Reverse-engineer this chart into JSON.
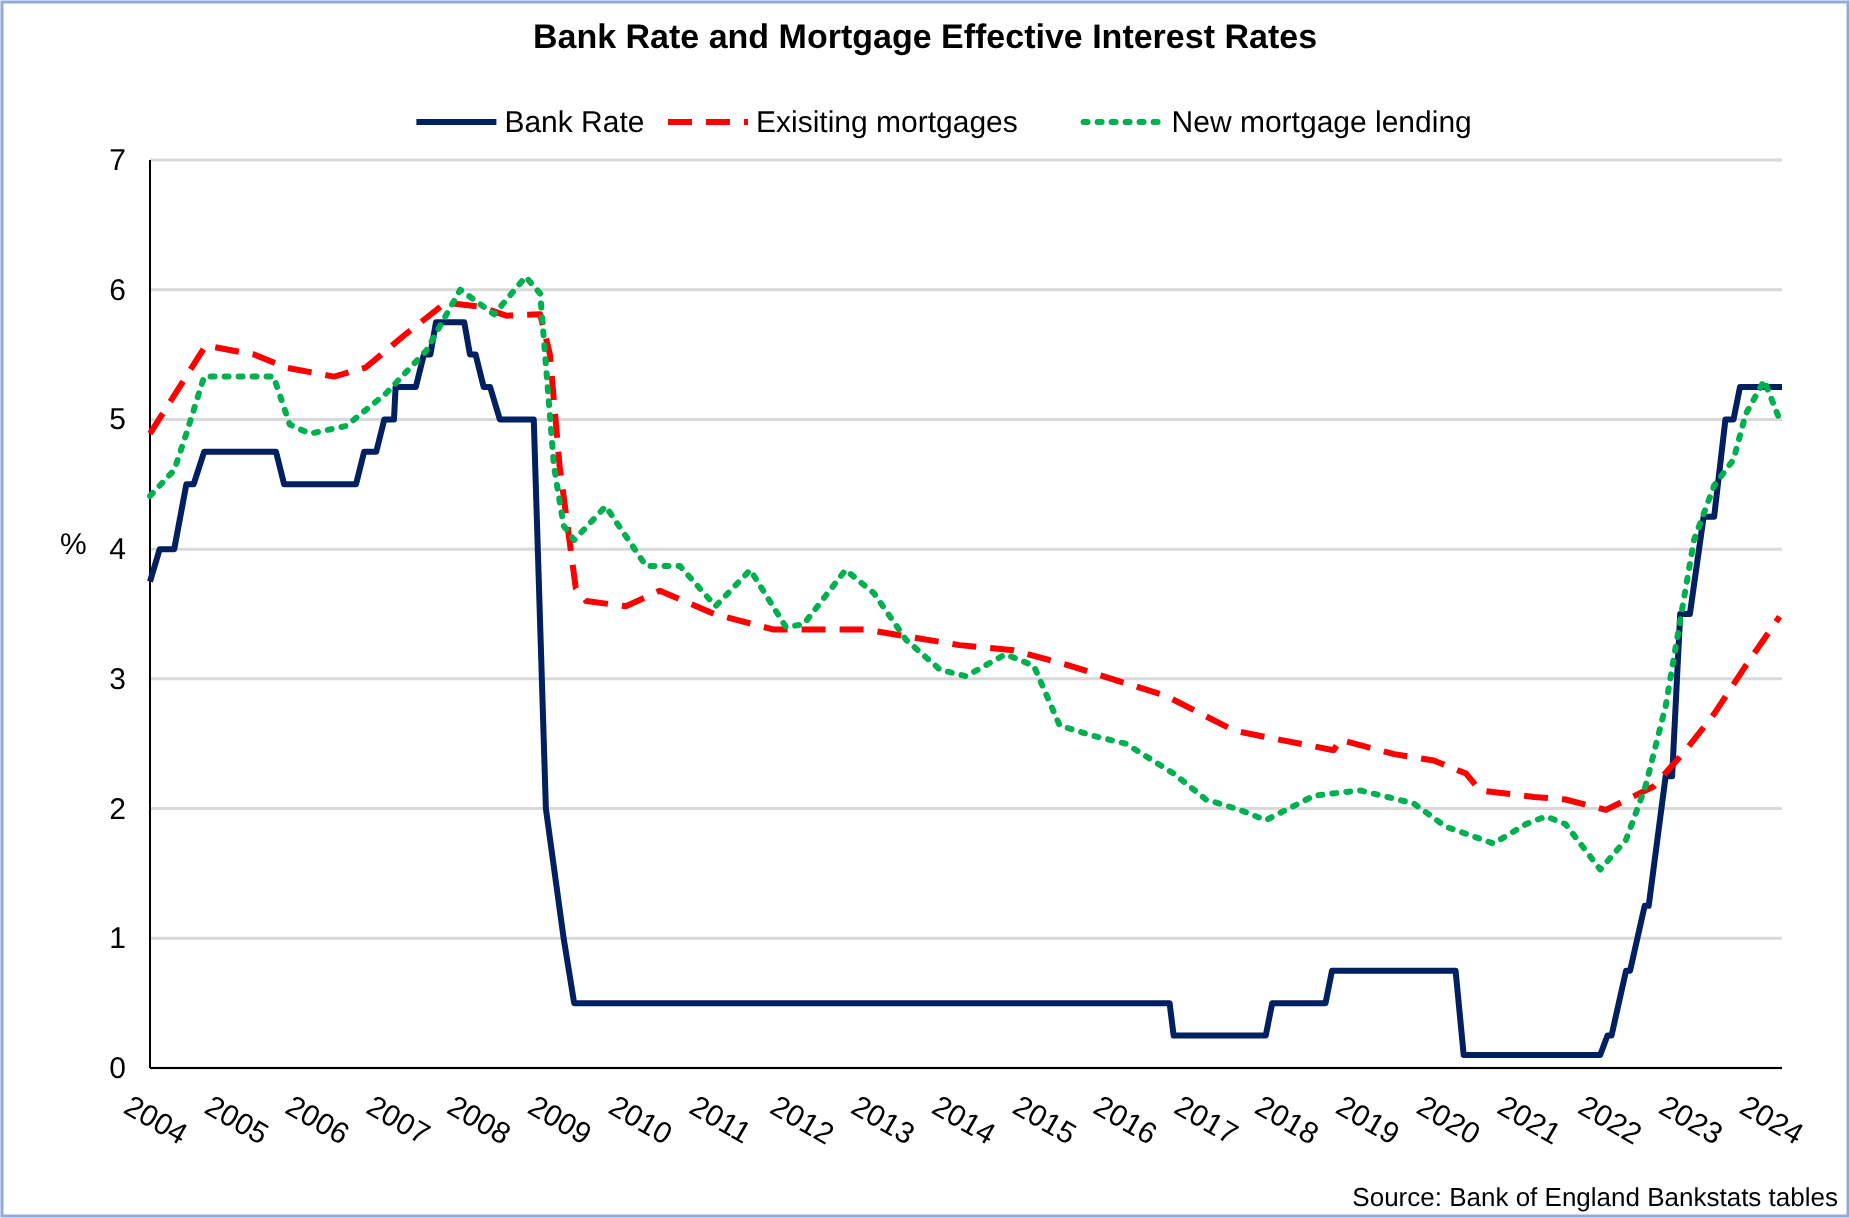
{
  "chart_data": {
    "type": "line",
    "title": "Bank Rate and Mortgage Effective Interest Rates",
    "ylabel": "%",
    "xlim": [
      2004,
      2024.2
    ],
    "xticks": [
      2004,
      2005,
      2006,
      2007,
      2008,
      2009,
      2010,
      2011,
      2012,
      2013,
      2014,
      2015,
      2016,
      2017,
      2018,
      2019,
      2020,
      2021,
      2022,
      2023,
      2024
    ],
    "ylim": [
      0,
      7
    ],
    "yticks": [
      0,
      1,
      2,
      3,
      4,
      5,
      6,
      7
    ],
    "grid": "y",
    "legend": "top",
    "annotations": [
      "Source: Bank of England Bankstats tables"
    ],
    "series": [
      {
        "name": "Bank Rate",
        "color": "#002060",
        "line_style": "solid",
        "x": [
          2004,
          2004.12,
          2004.3,
          2004.45,
          2004.54,
          2004.67,
          2005.56,
          2005.66,
          2006.55,
          2006.65,
          2006.8,
          2006.9,
          2007.02,
          2007.04,
          2007.29,
          2007.39,
          2007.47,
          2007.54,
          2007.89,
          2007.96,
          2008.03,
          2008.13,
          2008.21,
          2008.33,
          2008.75,
          2008.9,
          2009.12,
          2009.25,
          2016.62,
          2016.67,
          2017.81,
          2017.89,
          2018.55,
          2018.63,
          2020.16,
          2020.26,
          2021.95,
          2022.04,
          2022.09,
          2022.27,
          2022.32,
          2022.5,
          2022.55,
          2022.76,
          2022.84,
          2022.94,
          2023.06,
          2023.23,
          2023.36,
          2023.5,
          2023.6,
          2023.68,
          2024.2
        ],
        "values": [
          3.75,
          4,
          4,
          4.5,
          4.5,
          4.75,
          4.75,
          4.5,
          4.5,
          4.75,
          4.75,
          5,
          5,
          5.25,
          5.25,
          5.5,
          5.5,
          5.75,
          5.75,
          5.5,
          5.5,
          5.25,
          5.25,
          5,
          5,
          2,
          1,
          0.5,
          0.5,
          0.25,
          0.25,
          0.5,
          0.5,
          0.75,
          0.75,
          0.1,
          0.1,
          0.25,
          0.25,
          0.75,
          0.75,
          1.25,
          1.25,
          2.25,
          2.25,
          3.5,
          3.5,
          4.25,
          4.25,
          5,
          5,
          5.25,
          5.25
        ]
      },
      {
        "name": "Exisiting mortgages",
        "color": "#ff0000",
        "line_style": "dashed",
        "x": [
          2004,
          2004.69,
          2005.29,
          2005.68,
          2006.28,
          2006.67,
          2007.17,
          2007.66,
          2008.08,
          2008.41,
          2008.83,
          2008.95,
          2009.07,
          2009.27,
          2009.4,
          2009.89,
          2010.31,
          2010.98,
          2011.72,
          2012.86,
          2014.02,
          2014.69,
          2015.34,
          2016.57,
          2017.42,
          2017.99,
          2018.65,
          2018.73,
          2019.4,
          2019.89,
          2020.29,
          2020.46,
          2021.13,
          2021.52,
          2022.02,
          2022.61,
          2023.01,
          2023.36,
          2023.75,
          2024.17
        ],
        "values": [
          4.89,
          5.57,
          5.5,
          5.4,
          5.33,
          5.4,
          5.66,
          5.9,
          5.87,
          5.8,
          5.81,
          5.5,
          4.64,
          3.7,
          3.6,
          3.56,
          3.68,
          3.5,
          3.38,
          3.38,
          3.26,
          3.22,
          3.11,
          2.87,
          2.6,
          2.53,
          2.45,
          2.53,
          2.42,
          2.37,
          2.27,
          2.14,
          2.09,
          2.07,
          1.99,
          2.17,
          2.45,
          2.73,
          3.1,
          3.48
        ]
      },
      {
        "name": "New mortgage lending",
        "color": "#00b050",
        "line_style": "dotted",
        "x": [
          2004,
          2004.3,
          2004.45,
          2004.67,
          2005.53,
          2005.73,
          2005.98,
          2006.43,
          2006.92,
          2007.42,
          2007.84,
          2008.26,
          2008.65,
          2008.83,
          2009,
          2009.12,
          2009.25,
          2009.64,
          2009.89,
          2010.14,
          2010.56,
          2011,
          2011.43,
          2011.87,
          2012.09,
          2012.61,
          2012.96,
          2013.36,
          2013.78,
          2014.1,
          2014.59,
          2014.94,
          2015.26,
          2015.68,
          2016.08,
          2016.67,
          2017.07,
          2017.49,
          2017.81,
          2018.41,
          2018.98,
          2019.64,
          2020.04,
          2020.63,
          2021.03,
          2021.28,
          2021.52,
          2021.95,
          2022.27,
          2022.51,
          2022.76,
          2022.94,
          2023.11,
          2023.36,
          2023.6,
          2023.75,
          2023.98,
          2024.17
        ],
        "values": [
          4.41,
          4.61,
          4.89,
          5.33,
          5.33,
          4.96,
          4.89,
          4.95,
          5.2,
          5.53,
          6,
          5.81,
          6.1,
          5.97,
          4.64,
          4.18,
          4.07,
          4.33,
          4.1,
          3.87,
          3.87,
          3.56,
          3.84,
          3.4,
          3.42,
          3.84,
          3.66,
          3.3,
          3.07,
          3.02,
          3.19,
          3.1,
          2.64,
          2.56,
          2.5,
          2.27,
          2.07,
          1.99,
          1.91,
          2.1,
          2.14,
          2.04,
          1.86,
          1.73,
          1.88,
          1.94,
          1.88,
          1.53,
          1.76,
          2.17,
          2.79,
          3.45,
          4.07,
          4.49,
          4.69,
          5.04,
          5.3,
          5
        ]
      }
    ]
  }
}
